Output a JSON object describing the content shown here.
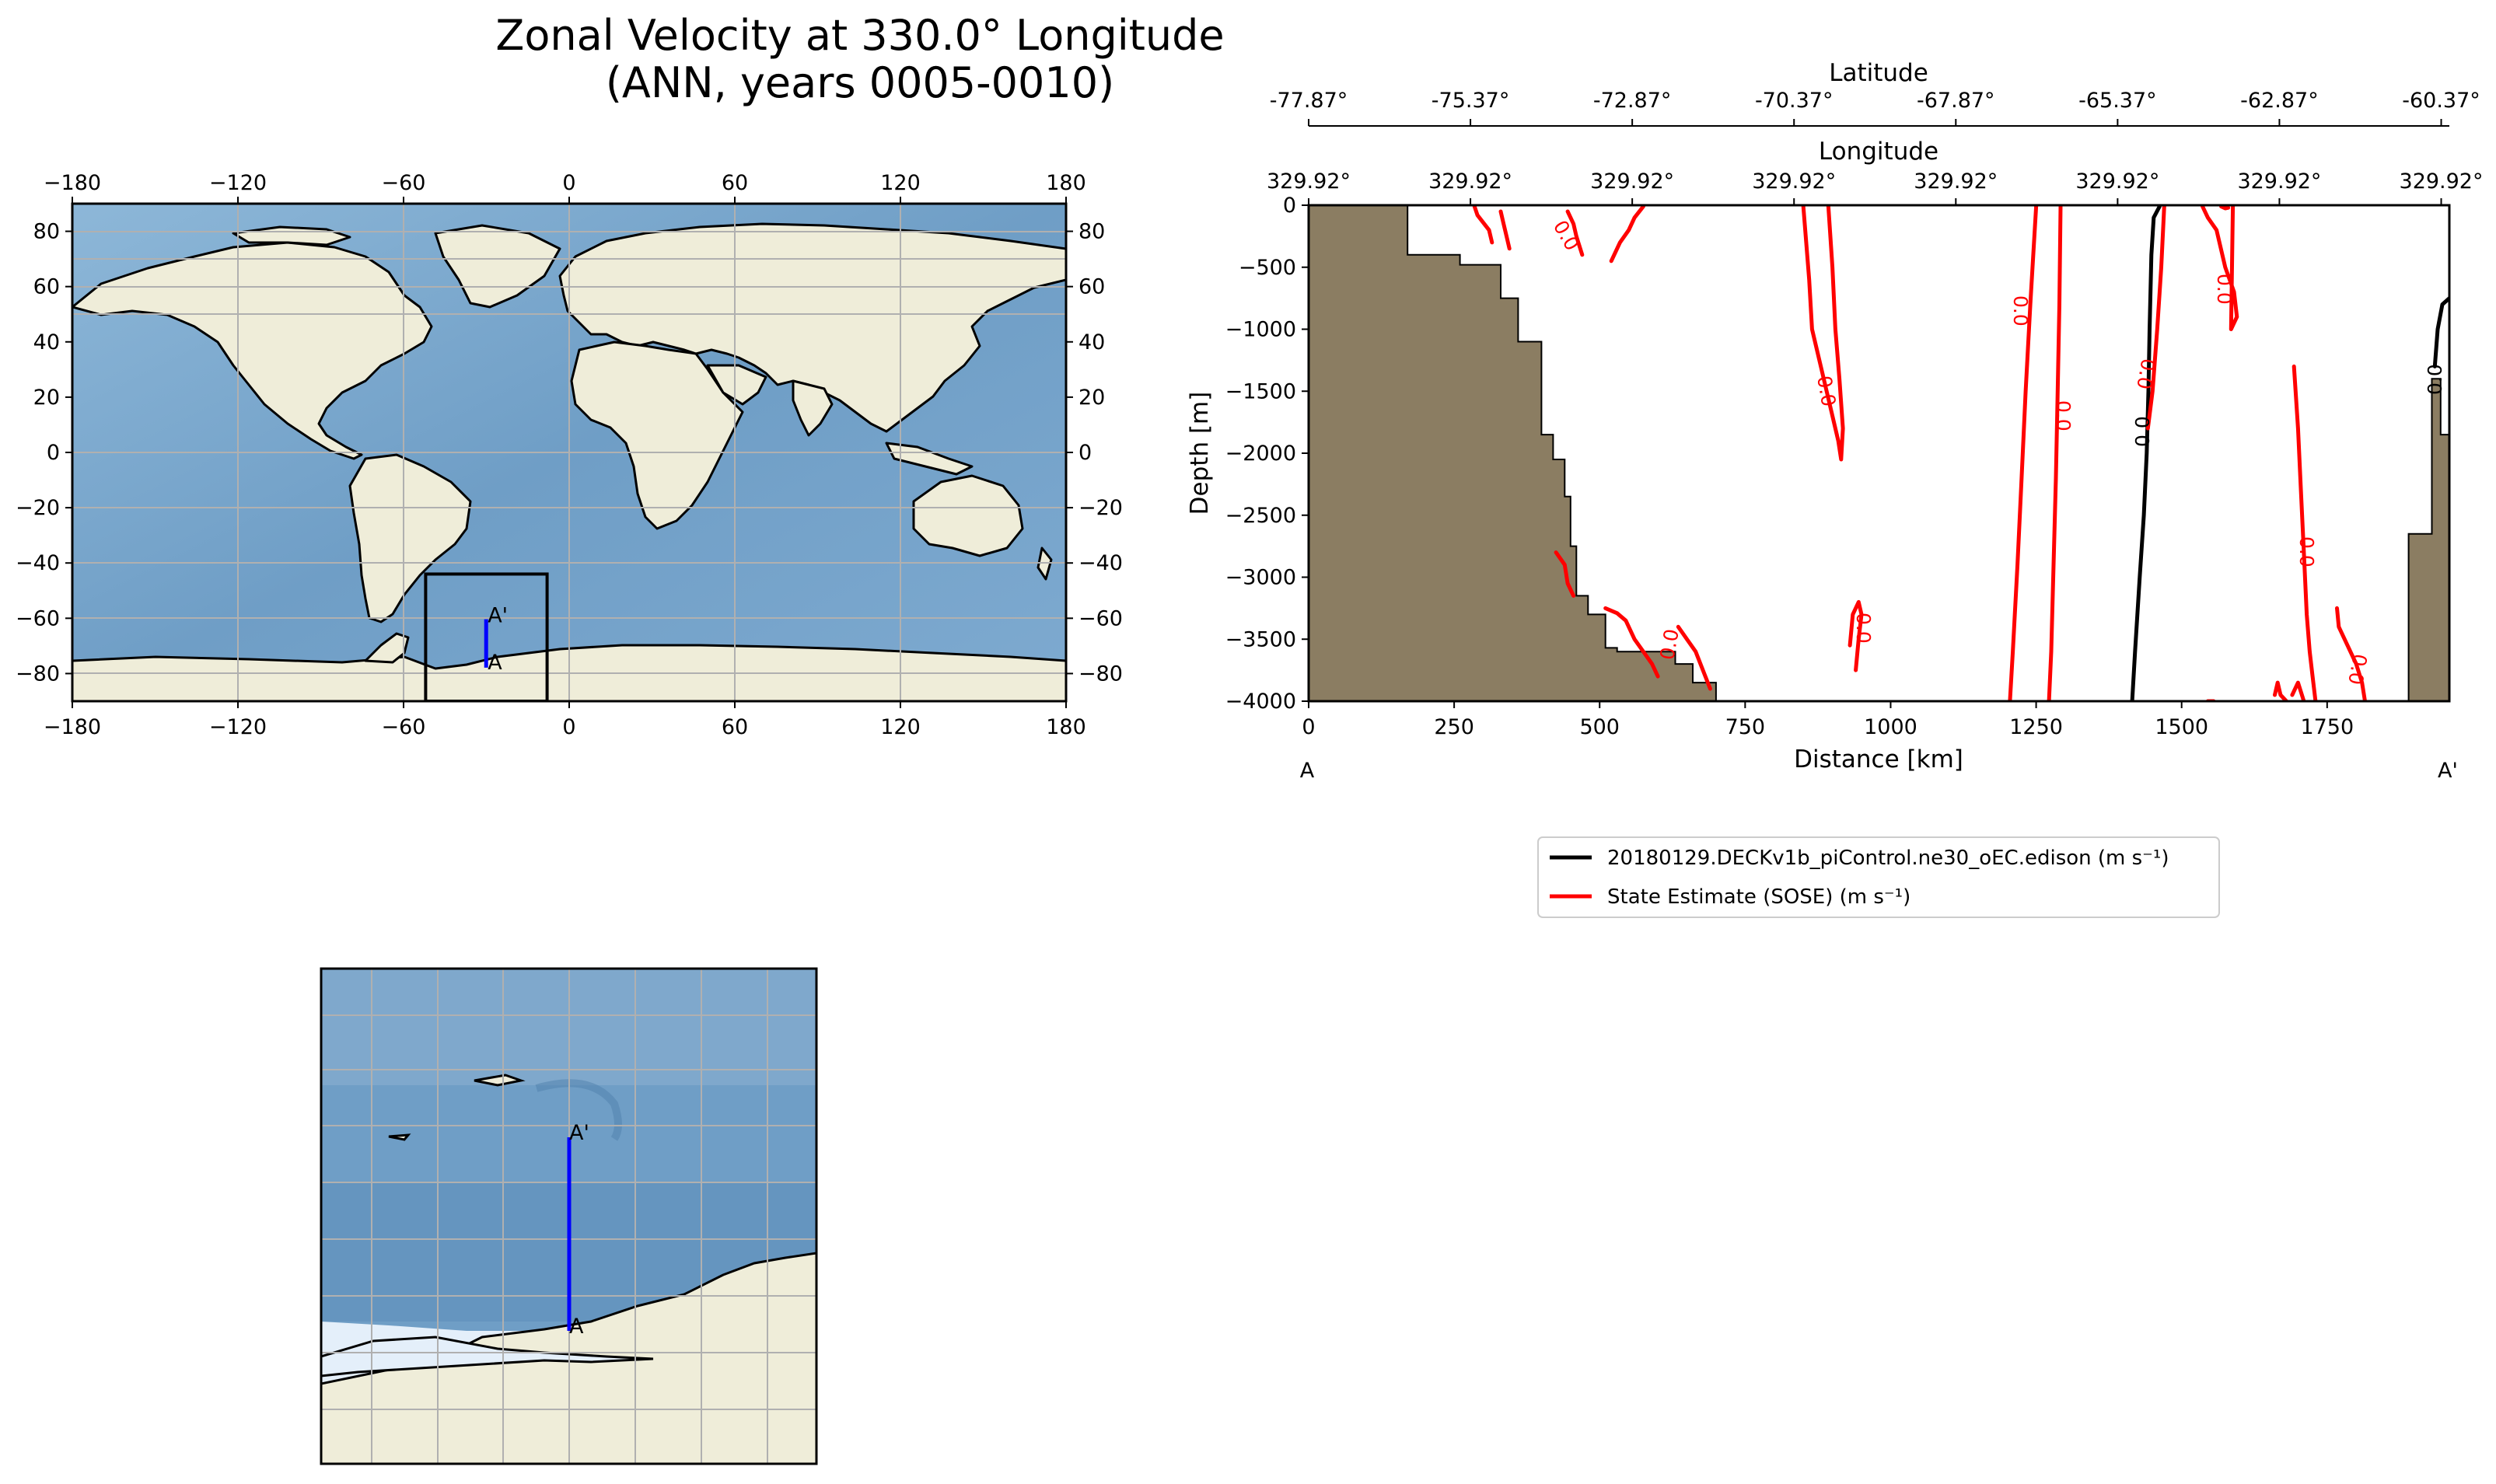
{
  "title": {
    "line1": "Zonal Velocity at 330.0° Longitude",
    "line2": "(ANN, years 0005-0010)"
  },
  "colors": {
    "ocean": "#7fa9cc",
    "ocean_deep": "#5f8fb8",
    "land": "#efedd9",
    "ice": "#e4effa",
    "bathymetry": "#8b7d62",
    "transect": "#0000ff",
    "model_line": "#000000",
    "obs_line": "#ff0000",
    "grid": "#b0b0b0"
  },
  "global_map": {
    "x_ticks": [
      "−180",
      "−120",
      "−60",
      "0",
      "60",
      "120",
      "180"
    ],
    "y_ticks": [
      "80",
      "60",
      "40",
      "20",
      "0",
      "−20",
      "−40",
      "−60",
      "−80"
    ],
    "x_range": [
      -180,
      180
    ],
    "y_range": [
      -90,
      90
    ],
    "inset_box": {
      "lon": [
        -52,
        -8
      ],
      "lat": [
        -90,
        -44
      ]
    },
    "transect": {
      "lon": -30.08,
      "lat": [
        -77.87,
        -60.37
      ]
    },
    "end_labels": {
      "start": "A",
      "end": "A'"
    }
  },
  "zoom_map": {
    "end_labels": {
      "start": "A",
      "end": "A'"
    }
  },
  "chart_data": {
    "type": "line",
    "title": "Zonal Velocity at 330.0° Longitude (ANN, years 0005-0010)",
    "xlabel": "Distance [km]",
    "ylabel": "Depth [m]",
    "xlim": [
      0,
      1960
    ],
    "ylim": [
      -4000,
      0
    ],
    "x_ticks": [
      {
        "value": 0,
        "label": "0"
      },
      {
        "value": 250,
        "label": "250"
      },
      {
        "value": 500,
        "label": "500"
      },
      {
        "value": 750,
        "label": "750"
      },
      {
        "value": 1000,
        "label": "1000"
      },
      {
        "value": 1250,
        "label": "1250"
      },
      {
        "value": 1500,
        "label": "1500"
      },
      {
        "value": 1750,
        "label": "1750"
      }
    ],
    "y_ticks": [
      {
        "value": 0,
        "label": "0"
      },
      {
        "value": -500,
        "label": "−500"
      },
      {
        "value": -1000,
        "label": "−1000"
      },
      {
        "value": -1500,
        "label": "−1500"
      },
      {
        "value": -2000,
        "label": "−2000"
      },
      {
        "value": -2500,
        "label": "−2500"
      },
      {
        "value": -3000,
        "label": "−3000"
      },
      {
        "value": -3500,
        "label": "−3500"
      },
      {
        "value": -4000,
        "label": "−4000"
      }
    ],
    "latitude_axis": {
      "label": "Latitude",
      "ticks": [
        {
          "value": 0,
          "label": "-77.87°"
        },
        {
          "value": 278,
          "label": "-75.37°"
        },
        {
          "value": 556,
          "label": "-72.87°"
        },
        {
          "value": 834,
          "label": "-70.37°"
        },
        {
          "value": 1112,
          "label": "-67.87°"
        },
        {
          "value": 1390,
          "label": "-65.37°"
        },
        {
          "value": 1668,
          "label": "-62.87°"
        },
        {
          "value": 1946,
          "label": "-60.37°"
        }
      ]
    },
    "longitude_axis": {
      "label": "Longitude",
      "ticks": [
        {
          "value": 0,
          "label": "329.92°"
        },
        {
          "value": 278,
          "label": "329.92°"
        },
        {
          "value": 556,
          "label": "329.92°"
        },
        {
          "value": 834,
          "label": "329.92°"
        },
        {
          "value": 1112,
          "label": "329.92°"
        },
        {
          "value": 1390,
          "label": "329.92°"
        },
        {
          "value": 1668,
          "label": "329.92°"
        },
        {
          "value": 1946,
          "label": "329.92°"
        }
      ]
    },
    "endpoints": {
      "start": "A",
      "end": "A'"
    },
    "bathymetry": {
      "x": [
        0,
        0,
        170,
        170,
        260,
        260,
        330,
        330,
        360,
        360,
        400,
        400,
        420,
        420,
        440,
        440,
        450,
        450,
        460,
        460,
        480,
        480,
        510,
        510,
        530,
        530,
        630,
        630,
        660,
        660,
        700,
        700,
        0
      ],
      "y": [
        -4000,
        0,
        0,
        -400,
        -400,
        -480,
        -480,
        -750,
        -750,
        -1100,
        -1100,
        -1850,
        -1850,
        -2050,
        -2050,
        -2350,
        -2350,
        -2750,
        -2750,
        -3150,
        -3150,
        -3300,
        -3300,
        -3570,
        -3570,
        -3600,
        -3600,
        -3700,
        -3700,
        -3850,
        -3850,
        -4000,
        -4000
      ]
    },
    "bathymetry_east": {
      "x": [
        1960,
        1960,
        1945,
        1945,
        1930,
        1930,
        1910,
        1910,
        1890,
        1890,
        1960
      ],
      "y": [
        -4000,
        -1850,
        -1850,
        -1400,
        -1400,
        -2650,
        -2650,
        -2650,
        -2650,
        -4000,
        -4000
      ]
    },
    "series": [
      {
        "name": "20180129.DECKv1b_piControl.ne30_oEC.edison (m s⁻¹)",
        "color": "#000000",
        "contour_label": "0.0",
        "segments": [
          {
            "x": [
              1415,
              1420,
              1428,
              1435,
              1440,
              1443,
              1445,
              1448,
              1452,
              1462
            ],
            "y": [
              -4000,
              -3600,
              -3000,
              -2500,
              -2000,
              -1500,
              -1000,
              -400,
              -100,
              -10
            ]
          },
          {
            "x": [
              1935,
              1940,
              1948,
              1960
            ],
            "y": [
              -1300,
              -1000,
              -800,
              -750
            ]
          }
        ]
      },
      {
        "name": "State Estimate (SOSE) (m s⁻¹)",
        "color": "#ff0000",
        "contour_label": "0.0",
        "segments": [
          {
            "x": [
              285,
              290,
              300,
              310,
              315
            ],
            "y": [
              -10,
              -80,
              -140,
              -200,
              -300
            ]
          },
          {
            "x": [
              330,
              335,
              340,
              345
            ],
            "y": [
              -50,
              -150,
              -250,
              -350
            ]
          },
          {
            "x": [
              445,
              455,
              460,
              470
            ],
            "y": [
              -50,
              -150,
              -250,
              -400
            ]
          },
          {
            "x": [
              520,
              535,
              550,
              560,
              575
            ],
            "y": [
              -450,
              -300,
              -200,
              -100,
              -10
            ]
          },
          {
            "x": [
              425,
              440,
              445,
              455
            ],
            "y": [
              -2800,
              -2900,
              -3050,
              -3150
            ]
          },
          {
            "x": [
              510,
              530,
              545,
              560,
              575,
              590,
              600
            ],
            "y": [
              -3250,
              -3290,
              -3350,
              -3500,
              -3600,
              -3700,
              -3800
            ]
          },
          {
            "x": [
              635,
              650,
              665,
              690
            ],
            "y": [
              -3400,
              -3500,
              -3600,
              -3900
            ]
          },
          {
            "x": [
              850,
              855,
              860,
              865,
              880,
              895,
              910,
              915,
              918,
              912,
              905,
              900,
              893
            ],
            "y": [
              -10,
              -300,
              -600,
              -1000,
              -1300,
              -1600,
              -1900,
              -2050,
              -1800,
              -1400,
              -1000,
              -500,
              -10
            ]
          },
          {
            "x": [
              940,
              945,
              950,
              945,
              935,
              930
            ],
            "y": [
              -3750,
              -3500,
              -3300,
              -3200,
              -3300,
              -3550
            ]
          },
          {
            "x": [
              1250,
              1240,
              1232,
              1225,
              1218,
              1210,
              1205
            ],
            "y": [
              -10,
              -800,
              -1500,
              -2200,
              -2900,
              -3600,
              -4000
            ]
          },
          {
            "x": [
              1292,
              1290,
              1287,
              1284,
              1280,
              1276,
              1272
            ],
            "y": [
              -10,
              -800,
              -1500,
              -2200,
              -2900,
              -3600,
              -4000
            ]
          },
          {
            "x": [
              1470,
              1465,
              1458,
              1450,
              1442
            ],
            "y": [
              -10,
              -500,
              -1000,
              -1500,
              -1800
            ]
          },
          {
            "x": [
              1536,
              1545,
              1560,
              1575,
              1590,
              1595,
              1585,
              1588
            ],
            "y": [
              -10,
              -100,
              -200,
              -500,
              -700,
              -900,
              -1000,
              -10
            ]
          },
          {
            "x": [
              1568,
              1575,
              1580
            ],
            "y": [
              -10,
              -25,
              -20
            ]
          },
          {
            "x": [
              1545,
              1555
            ],
            "y": [
              -4000,
              -4000
            ]
          },
          {
            "x": [
              1693,
              1700,
              1705,
              1710,
              1715,
              1720,
              1725,
              1730
            ],
            "y": [
              -1300,
              -1800,
              -2300,
              -2800,
              -3300,
              -3600,
              -3800,
              -4000
            ]
          },
          {
            "x": [
              1690,
              1700,
              1710
            ],
            "y": [
              -3950,
              -3850,
              -4000
            ]
          },
          {
            "x": [
              1660,
              1665,
              1670,
              1680
            ],
            "y": [
              -3950,
              -3850,
              -3950,
              -4000
            ]
          },
          {
            "x": [
              1767,
              1770,
              1785,
              1800,
              1810,
              1815
            ],
            "y": [
              -3250,
              -3400,
              -3550,
              -3700,
              -3850,
              -4000
            ]
          }
        ]
      }
    ],
    "legend_position": "below"
  }
}
